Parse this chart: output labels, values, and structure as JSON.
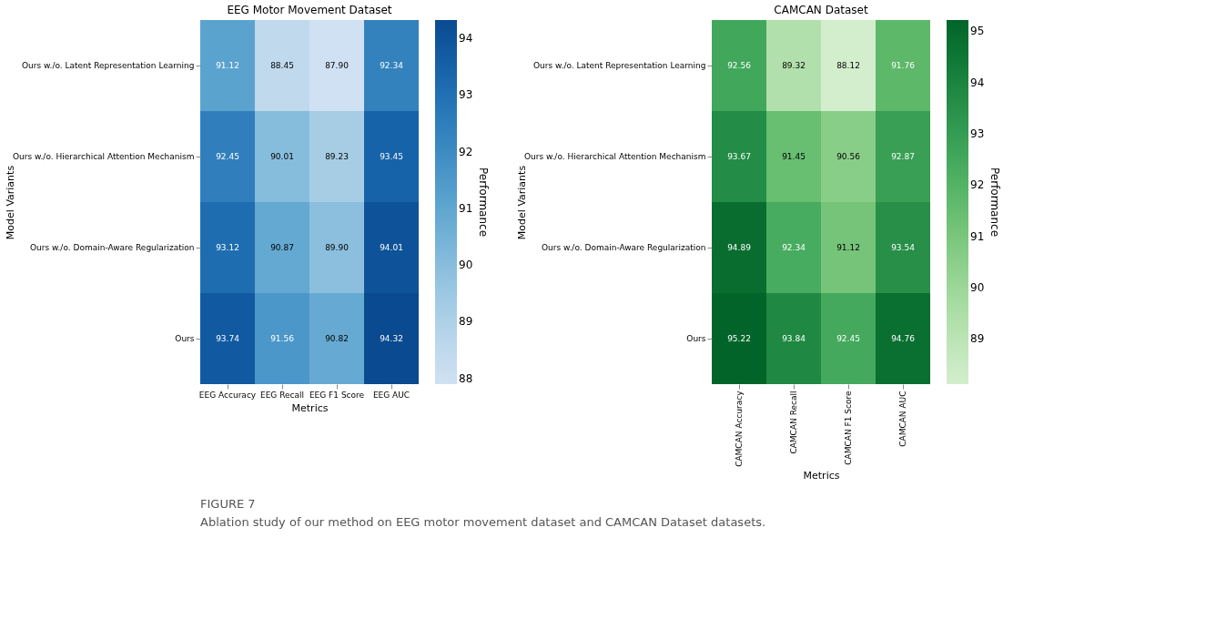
{
  "chart_data": [
    {
      "type": "heatmap",
      "title": "EEG Motor Movement Dataset",
      "xlabel": "Metrics",
      "ylabel": "Model Variants",
      "clabel": "Performance",
      "categories": [
        "EEG Accuracy",
        "EEG Recall",
        "EEG F1 Score",
        "EEG AUC"
      ],
      "y_categories": [
        "Ours w./o. Latent Representation Learning",
        "Ours w./o. Hierarchical Attention Mechanism",
        "Ours w./o. Domain-Aware Regularization",
        "Ours"
      ],
      "cells": [
        [
          91.12,
          88.45,
          87.9,
          92.34
        ],
        [
          92.45,
          90.01,
          89.23,
          93.45
        ],
        [
          93.12,
          90.87,
          89.9,
          94.01
        ],
        [
          93.74,
          91.56,
          90.82,
          94.32
        ]
      ],
      "cell_labels": [
        [
          "91.12",
          "88.45",
          "87.90",
          "92.34"
        ],
        [
          "92.45",
          "90.01",
          "89.23",
          "93.45"
        ],
        [
          "93.12",
          "90.87",
          "89.90",
          "94.01"
        ],
        [
          "93.74",
          "91.56",
          "90.82",
          "94.32"
        ]
      ],
      "clim": [
        87.9,
        94.32
      ],
      "cticks": [
        88,
        89,
        90,
        91,
        92,
        93,
        94
      ],
      "annotations": [
        "FIGURE 7",
        "Ablation study of our method on EEG motor movement dataset and CAMCAN Dataset datasets."
      ]
    },
    {
      "type": "heatmap",
      "title": "CAMCAN Dataset",
      "xlabel": "Metrics",
      "ylabel": "Model Variants",
      "clabel": "Performance",
      "categories": [
        "CAMCAN Accuracy",
        "CAMCAN Recall",
        "CAMCAN F1 Score",
        "CAMCAN AUC"
      ],
      "y_categories": [
        "Ours w./o. Latent Representation Learning",
        "Ours w./o. Hierarchical Attention Mechanism",
        "Ours w./o. Domain-Aware Regularization",
        "Ours"
      ],
      "cells": [
        [
          92.56,
          89.32,
          88.12,
          91.76
        ],
        [
          93.67,
          91.45,
          90.56,
          92.87
        ],
        [
          94.89,
          92.34,
          91.12,
          93.54
        ],
        [
          95.22,
          93.84,
          92.45,
          94.76
        ]
      ],
      "cell_labels": [
        [
          "92.56",
          "89.32",
          "88.12",
          "91.76"
        ],
        [
          "93.67",
          "91.45",
          "90.56",
          "92.87"
        ],
        [
          "94.89",
          "92.34",
          "91.12",
          "93.54"
        ],
        [
          "95.22",
          "93.84",
          "92.45",
          "94.76"
        ]
      ],
      "clim": [
        88.12,
        95.22
      ],
      "cticks": [
        89,
        90,
        91,
        92,
        93,
        94,
        95
      ]
    }
  ]
}
